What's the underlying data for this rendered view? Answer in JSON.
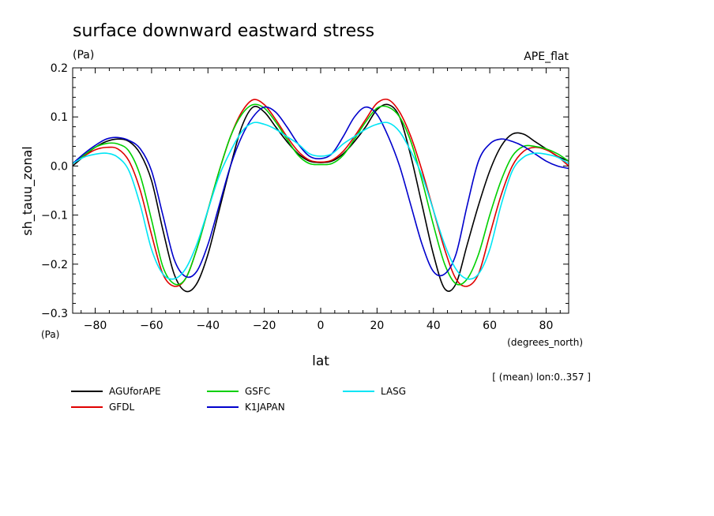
{
  "chart_data": {
    "type": "line",
    "title": "surface downward eastward stress",
    "units_label": "(Pa)",
    "experiment": "APE_flat",
    "ylabel": "sh_tauu_zonal",
    "yunits": "(Pa)",
    "xlabel": "lat",
    "xunits": "(degrees_north)",
    "footnote": "[ (mean) lon:0..357 ]",
    "xlim": [
      -88,
      88
    ],
    "ylim": [
      -0.3,
      0.2
    ],
    "xticks": [
      -80,
      -60,
      -40,
      -20,
      0,
      20,
      40,
      60,
      80
    ],
    "xtick_labels": [
      "−80",
      "−60",
      "−40",
      "−20",
      "0",
      "20",
      "40",
      "60",
      "80"
    ],
    "yticks": [
      -0.3,
      -0.2,
      -0.1,
      0.0,
      0.1,
      0.2
    ],
    "ytick_labels": [
      "−0.3",
      "−0.2",
      "−0.1",
      "0.0",
      "0.1",
      "0.2"
    ],
    "x": [
      -88,
      -84,
      -80,
      -76,
      -72,
      -68,
      -64,
      -60,
      -56,
      -52,
      -48,
      -44,
      -40,
      -36,
      -32,
      -28,
      -24,
      -20,
      -16,
      -12,
      -8,
      -4,
      0,
      4,
      8,
      12,
      16,
      20,
      24,
      28,
      32,
      36,
      40,
      44,
      48,
      52,
      56,
      60,
      64,
      68,
      72,
      76,
      80,
      84,
      88
    ],
    "series": [
      {
        "name": "AGUforAPE",
        "color": "#000000",
        "values": [
          0.0,
          0.02,
          0.038,
          0.05,
          0.055,
          0.05,
          0.025,
          -0.03,
          -0.13,
          -0.22,
          -0.255,
          -0.24,
          -0.18,
          -0.09,
          0.0,
          0.08,
          0.12,
          0.11,
          0.08,
          0.05,
          0.025,
          0.01,
          0.007,
          0.01,
          0.025,
          0.05,
          0.08,
          0.115,
          0.125,
          0.1,
          0.02,
          -0.08,
          -0.18,
          -0.25,
          -0.24,
          -0.16,
          -0.08,
          -0.01,
          0.04,
          0.065,
          0.065,
          0.05,
          0.035,
          0.02,
          0.01
        ]
      },
      {
        "name": "GFDL",
        "color": "#e00000",
        "values": [
          0.005,
          0.02,
          0.033,
          0.038,
          0.035,
          0.01,
          -0.05,
          -0.14,
          -0.22,
          -0.245,
          -0.23,
          -0.17,
          -0.09,
          -0.01,
          0.06,
          0.11,
          0.135,
          0.125,
          0.095,
          0.06,
          0.03,
          0.012,
          0.008,
          0.012,
          0.03,
          0.06,
          0.095,
          0.128,
          0.135,
          0.11,
          0.06,
          -0.01,
          -0.09,
          -0.17,
          -0.23,
          -0.245,
          -0.22,
          -0.14,
          -0.06,
          0.0,
          0.03,
          0.038,
          0.033,
          0.02,
          0.0
        ]
      },
      {
        "name": "GSFC",
        "color": "#00d000",
        "values": [
          0.005,
          0.022,
          0.038,
          0.046,
          0.045,
          0.03,
          -0.02,
          -0.11,
          -0.205,
          -0.24,
          -0.23,
          -0.17,
          -0.09,
          -0.01,
          0.06,
          0.105,
          0.125,
          0.118,
          0.09,
          0.055,
          0.022,
          0.005,
          0.003,
          0.005,
          0.022,
          0.055,
          0.09,
          0.118,
          0.12,
          0.1,
          0.05,
          -0.03,
          -0.12,
          -0.2,
          -0.24,
          -0.23,
          -0.18,
          -0.1,
          -0.03,
          0.02,
          0.04,
          0.04,
          0.035,
          0.025,
          0.01
        ]
      },
      {
        "name": "K1JAPAN",
        "color": "#0000cc",
        "values": [
          0.005,
          0.025,
          0.042,
          0.055,
          0.058,
          0.052,
          0.035,
          -0.01,
          -0.1,
          -0.19,
          -0.225,
          -0.215,
          -0.16,
          -0.08,
          0.0,
          0.06,
          0.1,
          0.12,
          0.11,
          0.08,
          0.045,
          0.02,
          0.015,
          0.025,
          0.06,
          0.1,
          0.12,
          0.105,
          0.06,
          0.0,
          -0.08,
          -0.16,
          -0.215,
          -0.22,
          -0.18,
          -0.08,
          0.01,
          0.045,
          0.055,
          0.05,
          0.04,
          0.025,
          0.01,
          0.0,
          -0.005
        ]
      },
      {
        "name": "LASG",
        "color": "#00e5f5",
        "values": [
          0.005,
          0.018,
          0.024,
          0.026,
          0.018,
          -0.01,
          -0.08,
          -0.17,
          -0.22,
          -0.23,
          -0.21,
          -0.16,
          -0.09,
          -0.02,
          0.03,
          0.07,
          0.088,
          0.085,
          0.075,
          0.06,
          0.045,
          0.025,
          0.02,
          0.025,
          0.045,
          0.06,
          0.075,
          0.085,
          0.088,
          0.07,
          0.03,
          -0.02,
          -0.09,
          -0.16,
          -0.21,
          -0.23,
          -0.22,
          -0.17,
          -0.08,
          -0.01,
          0.018,
          0.026,
          0.024,
          0.018,
          0.005
        ]
      }
    ]
  }
}
